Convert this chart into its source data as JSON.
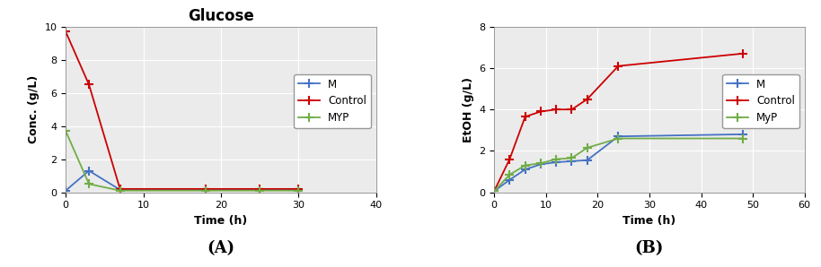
{
  "chart_A": {
    "title": "Glucose",
    "xlabel": "Time (h)",
    "ylabel": "Conc. (g/L)",
    "xlim": [
      0,
      40
    ],
    "ylim": [
      0,
      10
    ],
    "xticks": [
      0,
      10,
      20,
      30,
      40
    ],
    "yticks": [
      0,
      2,
      4,
      6,
      8,
      10
    ],
    "series": {
      "M": {
        "x": [
          0,
          3,
          7,
          18,
          25,
          30
        ],
        "y": [
          0.1,
          1.3,
          0.15,
          0.15,
          0.15,
          0.15
        ],
        "color": "#4472C4",
        "marker": "+"
      },
      "Control": {
        "x": [
          0,
          3,
          7,
          18,
          25,
          30
        ],
        "y": [
          9.7,
          6.5,
          0.2,
          0.2,
          0.2,
          0.2
        ],
        "color": "#CC0000",
        "marker": "+"
      },
      "MYP": {
        "x": [
          0,
          3,
          7,
          18,
          25,
          30
        ],
        "y": [
          3.7,
          0.5,
          0.1,
          0.1,
          0.1,
          0.1
        ],
        "color": "#70AD47",
        "marker": "+"
      }
    }
  },
  "chart_B": {
    "title": "",
    "xlabel": "Time (h)",
    "ylabel": "EtOH (g/L)",
    "xlim": [
      0,
      60
    ],
    "ylim": [
      0,
      8
    ],
    "xticks": [
      0,
      10,
      20,
      30,
      40,
      50,
      60
    ],
    "yticks": [
      0,
      2,
      4,
      6,
      8
    ],
    "series": {
      "M": {
        "x": [
          0,
          3,
          6,
          9,
          12,
          15,
          18,
          24,
          48
        ],
        "y": [
          0.05,
          0.6,
          1.1,
          1.35,
          1.45,
          1.5,
          1.55,
          2.7,
          2.8
        ],
        "color": "#4472C4",
        "marker": "+"
      },
      "Control": {
        "x": [
          0,
          3,
          6,
          9,
          12,
          15,
          18,
          24,
          48
        ],
        "y": [
          0.05,
          1.6,
          3.65,
          3.9,
          4.0,
          4.0,
          4.5,
          6.1,
          6.7
        ],
        "color": "#CC0000",
        "marker": "+"
      },
      "MyP": {
        "x": [
          0,
          3,
          6,
          9,
          12,
          15,
          18,
          24,
          48
        ],
        "y": [
          0.05,
          0.85,
          1.3,
          1.4,
          1.6,
          1.65,
          2.15,
          2.6,
          2.6
        ],
        "color": "#70AD47",
        "marker": "+"
      }
    }
  },
  "label_A": "(A)",
  "label_B": "(B)",
  "bg_color": "#EBEBEB",
  "legend_fontsize": 8.5,
  "axis_label_fontsize": 9,
  "title_fontsize": 12,
  "tick_fontsize": 8
}
